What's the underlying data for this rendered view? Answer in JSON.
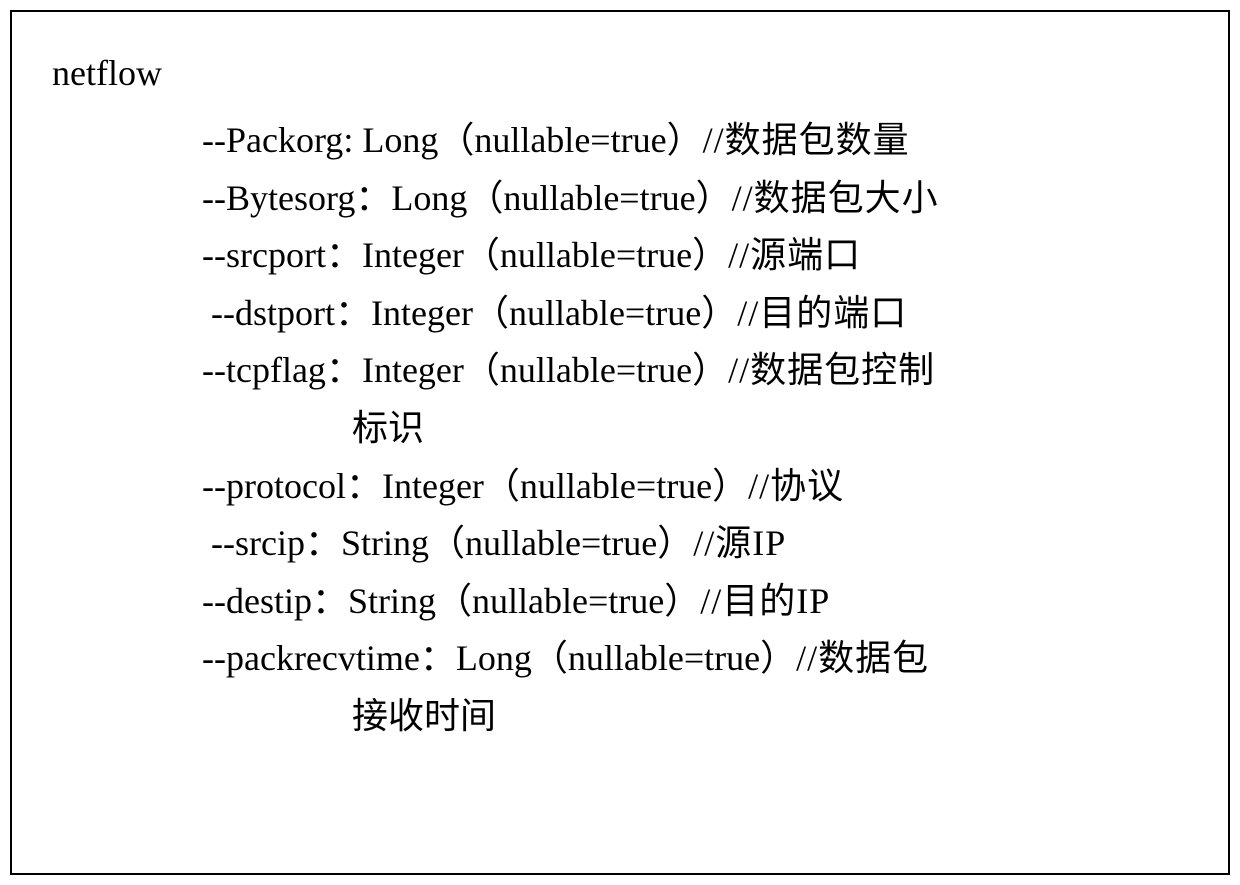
{
  "schema": {
    "title": "netflow",
    "fields": [
      {
        "name": "Packorg",
        "sep": ":",
        "type": "Long",
        "nullable_text": "（nullable=true）",
        "comment": "//数据包数量",
        "comment2": ""
      },
      {
        "name": "Bytesorg",
        "sep": "：",
        "type": "Long",
        "nullable_text": "（nullable=true）",
        "comment": "//数据包大小",
        "comment2": ""
      },
      {
        "name": "srcport",
        "sep": "：",
        "type": "Integer",
        "nullable_text": "（nullable=true）",
        "comment": "//源端口",
        "comment2": ""
      },
      {
        "name": "dstport",
        "sep": "：",
        "type": "Integer",
        "nullable_text": "（nullable=true）",
        "comment": "//目的端口",
        "comment2": ""
      },
      {
        "name": "tcpflag",
        "sep": "：",
        "type": "Integer",
        "nullable_text": "（nullable=true）",
        "comment": "//数据包控制",
        "comment2": "标识"
      },
      {
        "name": "protocol",
        "sep": "：",
        "type": "Integer",
        "nullable_text": "（nullable=true）",
        "comment": "//协议",
        "comment2": ""
      },
      {
        "name": "srcip",
        "sep": "：",
        "type": "String",
        "nullable_text": "（nullable=true）",
        "comment": "//源IP",
        "comment2": ""
      },
      {
        "name": "destip",
        "sep": "：",
        "type": "String",
        "nullable_text": "（nullable=true）",
        "comment": "//目的IP",
        "comment2": ""
      },
      {
        "name": "packrecvtime",
        "sep": "：",
        "type": "Long",
        "nullable_text": "（nullable=true）",
        "comment": "//数据包",
        "comment2": "接收时间"
      }
    ]
  },
  "style": {
    "font_family": "Times New Roman",
    "font_size_pt": 27,
    "text_color": "#000000",
    "border_color": "#000000",
    "background_color": "#ffffff"
  }
}
